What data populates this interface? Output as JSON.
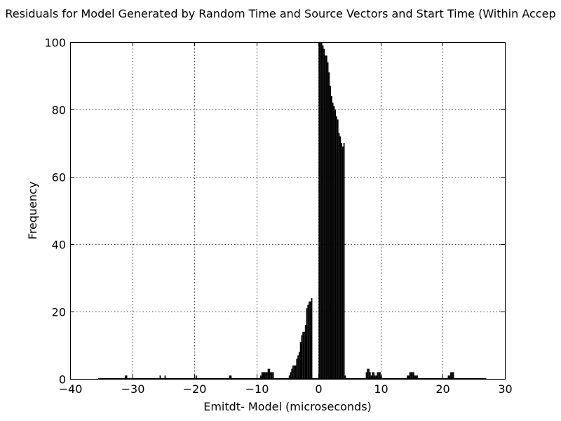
{
  "chart_data": {
    "type": "bar",
    "title": "Residuals for Model Generated by Random Time and Source Vectors and Start Time (Within Accep",
    "xlabel": "Emitdt- Model (microseconds)",
    "ylabel": "Frequency",
    "xlim": [
      -40,
      30
    ],
    "ylim": [
      0,
      100
    ],
    "xticks": [
      -40,
      -30,
      -20,
      -10,
      0,
      10,
      20,
      30
    ],
    "yticks": [
      0,
      20,
      40,
      60,
      80,
      100
    ],
    "xtick_labels": [
      "−40",
      "−30",
      "−20",
      "−10",
      "0",
      "10",
      "20",
      "30"
    ],
    "ytick_labels": [
      "0",
      "20",
      "40",
      "60",
      "80",
      "100"
    ],
    "grid": true,
    "bin_width": 0.2,
    "x": [
      -31.2,
      -31.0,
      -25.6,
      -24.8,
      -19.8,
      -14.4,
      -14.2,
      -9.4,
      -9.2,
      -9.0,
      -8.8,
      -8.6,
      -8.4,
      -8.2,
      -8.0,
      -7.8,
      -7.6,
      -7.4,
      -4.8,
      -4.6,
      -4.4,
      -4.2,
      -4.0,
      -3.8,
      -3.6,
      -3.4,
      -3.2,
      -3.0,
      -2.8,
      -2.6,
      -2.4,
      -2.2,
      -2.0,
      -1.8,
      -1.6,
      -1.4,
      -1.2,
      0.0,
      0.2,
      0.4,
      0.6,
      0.8,
      1.0,
      1.2,
      1.4,
      1.6,
      1.8,
      2.0,
      2.2,
      2.4,
      2.6,
      2.8,
      3.0,
      3.2,
      3.4,
      3.6,
      3.8,
      4.0,
      4.2,
      7.6,
      7.8,
      8.0,
      8.2,
      8.4,
      8.6,
      8.8,
      9.0,
      9.2,
      9.4,
      9.6,
      9.8,
      10.0,
      14.2,
      14.4,
      14.6,
      14.8,
      15.0,
      15.2,
      15.4,
      15.6,
      15.8,
      20.8,
      21.0,
      21.2,
      21.4,
      21.6
    ],
    "values": [
      1,
      1,
      1,
      1,
      1,
      1,
      1,
      1,
      2,
      2,
      2,
      2,
      2,
      3,
      3,
      2,
      2,
      2,
      1,
      2,
      3,
      4,
      4,
      4,
      6,
      7,
      8,
      11,
      13,
      14,
      14,
      16,
      21,
      22,
      23,
      23,
      24,
      100,
      100,
      100,
      99,
      98,
      96,
      96,
      94,
      91,
      87,
      84,
      82,
      81,
      80,
      78,
      77,
      73,
      72,
      70,
      69,
      70,
      1,
      2,
      3,
      3,
      2,
      1,
      2,
      2,
      1,
      1,
      2,
      2,
      2,
      1,
      1,
      1,
      2,
      2,
      2,
      2,
      1,
      1,
      1,
      1,
      1,
      2,
      2,
      2
    ]
  }
}
